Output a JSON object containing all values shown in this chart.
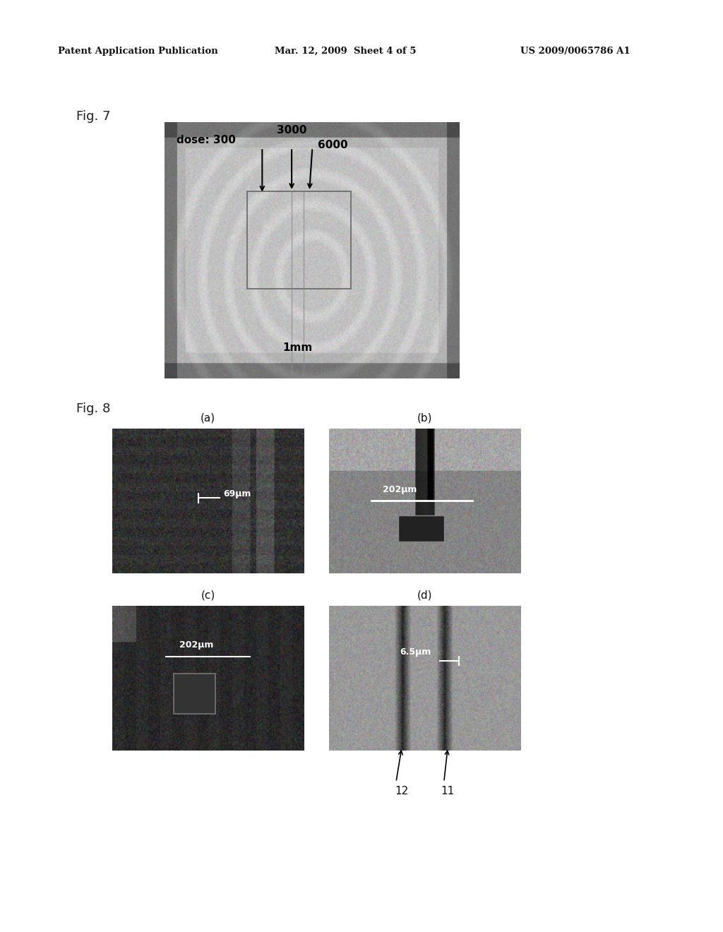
{
  "header_left": "Patent Application Publication",
  "header_mid": "Mar. 12, 2009  Sheet 4 of 5",
  "header_right": "US 2009/0065786 A1",
  "fig7_label": "Fig. 7",
  "fig8_label": "Fig. 8",
  "fig7_annotations": {
    "dose_label": "dose: 300",
    "label_3000": "3000",
    "label_6000": "6000",
    "label_1mm": "1mm"
  },
  "fig8_subplots": {
    "a_label": "(a)",
    "b_label": "(b)",
    "c_label": "(c)",
    "d_label": "(d)",
    "a_measure": "69μm",
    "b_measure": "202μm",
    "c_measure": "202μm",
    "d_measure": "6.5μm",
    "d_ref1": "12",
    "d_ref2": "11"
  },
  "bg_color": "#ffffff"
}
